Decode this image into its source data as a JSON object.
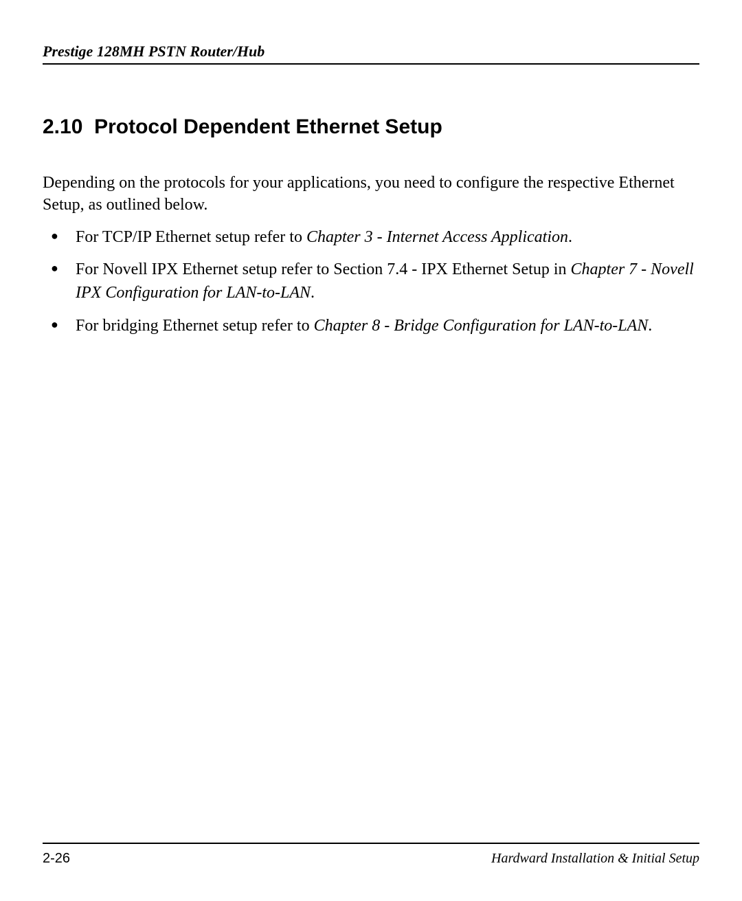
{
  "header": {
    "title": "Prestige 128MH  PSTN Router/Hub"
  },
  "section": {
    "number": "2.10",
    "title": "Protocol Dependent Ethernet Setup"
  },
  "intro": "Depending on the protocols for your applications, you need to configure the respective Ethernet Setup, as outlined below.",
  "bullets": [
    {
      "prefix": "For TCP/IP Ethernet setup refer to ",
      "italic": "Chapter 3 - Internet Access Application",
      "suffix": "."
    },
    {
      "prefix": "For Novell IPX Ethernet setup refer to Section 7.4  - IPX Ethernet Setup in ",
      "italic": "Chapter 7 - Novell IPX Configuration for LAN-to-LAN",
      "suffix": "."
    },
    {
      "prefix": "For bridging Ethernet setup refer to ",
      "italic": "Chapter 8 - Bridge Configuration for LAN-to-LAN",
      "suffix": "."
    }
  ],
  "footer": {
    "page_number": "2-26",
    "section_name": "Hardward Installation & Initial Setup"
  },
  "style": {
    "background_color": "#ffffff",
    "text_color": "#000000",
    "header_fontsize": 22,
    "heading_fontsize": 30,
    "body_fontsize": 24,
    "footer_fontsize": 20,
    "rule_color": "#000000",
    "rule_width": 2
  }
}
